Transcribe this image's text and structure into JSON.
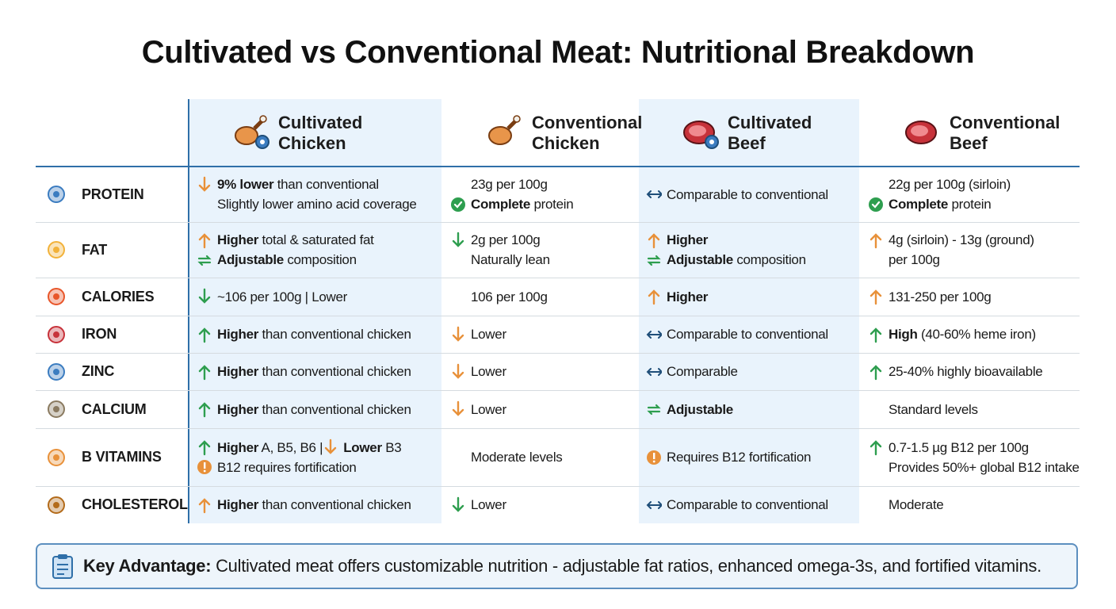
{
  "title": "Cultivated vs Conventional Meat: Nutritional Breakdown",
  "table": {
    "columns": [
      [
        "Cultivated",
        "Chicken"
      ],
      [
        "Conventional",
        "Chicken"
      ],
      [
        "Cultivated",
        "Beef"
      ],
      [
        "Conventional",
        "Beef"
      ]
    ],
    "rows": [
      {
        "label": "PROTEIN",
        "cells": [
          [
            [
              {
                "icon": "down-orange"
              },
              {
                "text": "9% lower",
                "bold": true
              },
              {
                "text": " than conventional"
              }
            ],
            [
              {
                "text": "Slightly lower amino acid coverage"
              }
            ]
          ],
          [
            [
              {
                "text": "23g per 100g"
              }
            ],
            [
              {
                "icon": "check"
              },
              {
                "text": "Complete",
                "bold": true
              },
              {
                "text": " protein"
              }
            ]
          ],
          [
            [
              {
                "icon": "both"
              },
              {
                "text": "Comparable to conventional"
              }
            ]
          ],
          [
            [
              {
                "text": "22g per 100g (sirloin)"
              }
            ],
            [
              {
                "icon": "check"
              },
              {
                "text": "Complete",
                "bold": true
              },
              {
                "text": " protein"
              }
            ]
          ]
        ]
      },
      {
        "label": "FAT",
        "cells": [
          [
            [
              {
                "icon": "up-orange"
              },
              {
                "text": "Higher",
                "bold": true
              },
              {
                "text": " total & saturated fat"
              }
            ],
            [
              {
                "icon": "cycle"
              },
              {
                "text": "Adjustable",
                "bold": true
              },
              {
                "text": " composition"
              }
            ]
          ],
          [
            [
              {
                "icon": "down-green"
              },
              {
                "text": "2g per 100g"
              }
            ],
            [
              {
                "text": "Naturally lean"
              }
            ]
          ],
          [
            [
              {
                "icon": "up-orange"
              },
              {
                "text": "Higher",
                "bold": true
              }
            ],
            [
              {
                "icon": "cycle"
              },
              {
                "text": "Adjustable",
                "bold": true
              },
              {
                "text": " composition"
              }
            ]
          ],
          [
            [
              {
                "icon": "up-orange"
              },
              {
                "text": "4g (sirloin) - 13g (ground)"
              }
            ],
            [
              {
                "text": "per 100g"
              }
            ]
          ]
        ]
      },
      {
        "label": "CALORIES",
        "cells": [
          [
            [
              {
                "icon": "down-green"
              },
              {
                "text": "~106 per 100g | Lower"
              }
            ]
          ],
          [
            [
              {
                "text": "106 per 100g"
              }
            ]
          ],
          [
            [
              {
                "icon": "up-orange"
              },
              {
                "text": "Higher",
                "bold": true
              }
            ]
          ],
          [
            [
              {
                "icon": "up-orange"
              },
              {
                "text": "131-250 per 100g"
              }
            ]
          ]
        ]
      },
      {
        "label": "IRON",
        "cells": [
          [
            [
              {
                "icon": "up-green"
              },
              {
                "text": "Higher",
                "bold": true
              },
              {
                "text": " than conventional chicken"
              }
            ]
          ],
          [
            [
              {
                "icon": "down-orange"
              },
              {
                "text": "Lower"
              }
            ]
          ],
          [
            [
              {
                "icon": "both"
              },
              {
                "text": "Comparable to conventional"
              }
            ]
          ],
          [
            [
              {
                "icon": "up-green"
              },
              {
                "text": "High",
                "bold": true
              },
              {
                "text": " (40-60% heme iron)"
              }
            ]
          ]
        ]
      },
      {
        "label": "ZINC",
        "cells": [
          [
            [
              {
                "icon": "up-green"
              },
              {
                "text": "Higher",
                "bold": true
              },
              {
                "text": " than conventional chicken"
              }
            ]
          ],
          [
            [
              {
                "icon": "down-orange"
              },
              {
                "text": "Lower"
              }
            ]
          ],
          [
            [
              {
                "icon": "both"
              },
              {
                "text": "Comparable"
              }
            ]
          ],
          [
            [
              {
                "icon": "up-green"
              },
              {
                "text": "25-40% highly bioavailable"
              }
            ]
          ]
        ]
      },
      {
        "label": "CALCIUM",
        "cells": [
          [
            [
              {
                "icon": "up-green"
              },
              {
                "text": "Higher",
                "bold": true
              },
              {
                "text": " than conventional chicken"
              }
            ]
          ],
          [
            [
              {
                "icon": "down-orange"
              },
              {
                "text": "Lower"
              }
            ]
          ],
          [
            [
              {
                "icon": "cycle"
              },
              {
                "text": "Adjustable",
                "bold": true
              }
            ]
          ],
          [
            [
              {
                "text": "Standard levels"
              }
            ]
          ]
        ]
      },
      {
        "label": "B VITAMINS",
        "cells": [
          [
            [
              {
                "icon": "up-green"
              },
              {
                "text": "Higher",
                "bold": true
              },
              {
                "text": " A, B5, B6 |"
              },
              {
                "icon": "down-orange"
              },
              {
                "text": "Lower",
                "bold": true
              },
              {
                "text": " B3"
              }
            ],
            [
              {
                "icon": "alert"
              },
              {
                "text": "B12 requires fortification"
              }
            ]
          ],
          [
            [
              {
                "text": "Moderate levels"
              }
            ]
          ],
          [
            [
              {
                "icon": "alert"
              },
              {
                "text": "Requires B12 fortification"
              }
            ]
          ],
          [
            [
              {
                "icon": "up-green"
              },
              {
                "text": "0.7-1.5 µg B12 per 100g"
              }
            ],
            [
              {
                "text": "Provides 50%+ global B12 intake"
              }
            ]
          ]
        ]
      },
      {
        "label": "CHOLESTEROL",
        "cells": [
          [
            [
              {
                "icon": "up-orange"
              },
              {
                "text": "Higher",
                "bold": true
              },
              {
                "text": " than conventional chicken"
              }
            ]
          ],
          [
            [
              {
                "icon": "down-green"
              },
              {
                "text": "Lower"
              }
            ]
          ],
          [
            [
              {
                "icon": "both"
              },
              {
                "text": "Comparable to conventional"
              }
            ]
          ],
          [
            [
              {
                "text": "Moderate"
              }
            ]
          ]
        ]
      }
    ]
  },
  "footer": {
    "label": "Key Advantage:",
    "text": " Cultivated meat offers customizable nutrition - adjustable fat ratios, enhanced omega-3s, and fortified vitamins."
  }
}
